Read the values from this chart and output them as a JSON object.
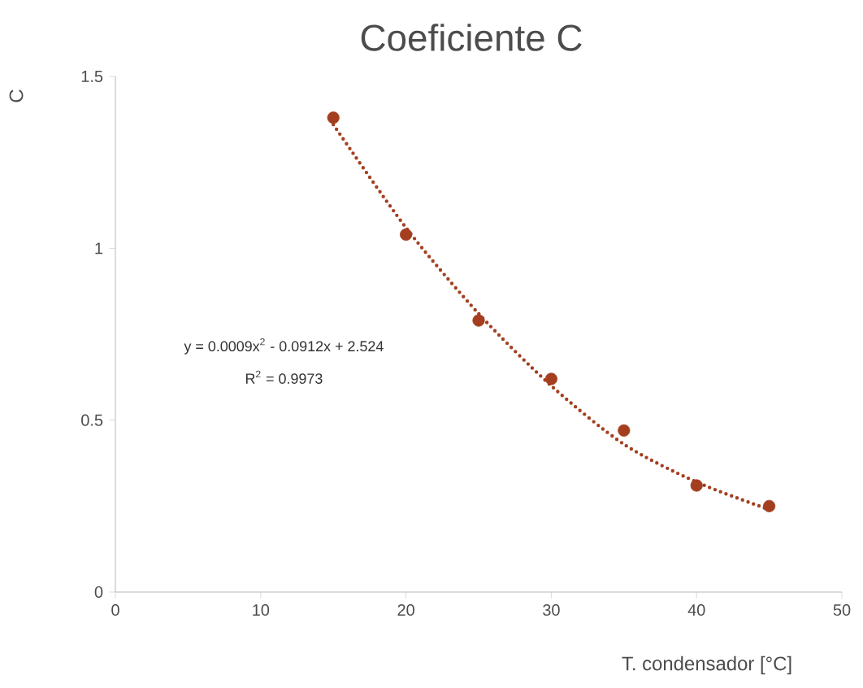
{
  "chart_data": {
    "type": "scatter",
    "title": "Coeficiente C",
    "xlabel": "T. condensador  [°C]",
    "ylabel": "C",
    "x": [
      15,
      20,
      25,
      30,
      35,
      40,
      45
    ],
    "series": [
      {
        "color": "#a33f1f",
        "marker": "circle",
        "values": [
          1.38,
          1.04,
          0.79,
          0.62,
          0.47,
          0.31,
          0.25
        ]
      },
      {
        "type": "line",
        "color": "#a33f1f",
        "line_style": "dotted",
        "marker": "none",
        "x": [
          15,
          20,
          25,
          30,
          35,
          40,
          45
        ],
        "values": [
          1.36,
          1.06,
          0.81,
          0.6,
          0.43,
          0.32,
          0.24
        ]
      }
    ],
    "annotations": [
      "y = 0.0009x$^{2}$ - 0.0912x + 2.524",
      "R$^{2}$ = 0.9973"
    ],
    "xlim": [
      0,
      50
    ],
    "xticks": [
      0,
      10,
      20,
      30,
      40,
      50
    ],
    "ylim": [
      0,
      1.5
    ],
    "yticks": [
      0,
      0.5,
      1,
      1.5
    ],
    "grid": false
  }
}
